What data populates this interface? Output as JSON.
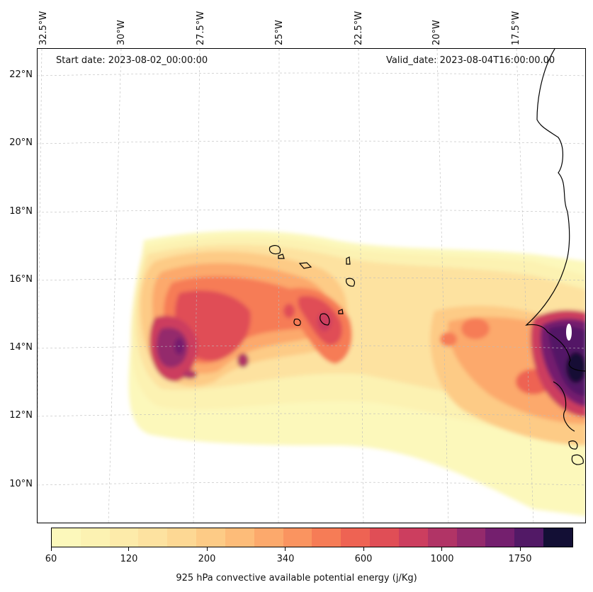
{
  "header": {
    "start_date": "Start date: 2023-08-02_00:00:00",
    "valid_date": "Valid_date: 2023-08-04T16:00:00.00"
  },
  "lon_labels": [
    "32.5°W",
    "30°W",
    "27.5°W",
    "25°W",
    "22.5°W",
    "20°W",
    "17.5°W"
  ],
  "lat_labels": [
    "22°N",
    "20°N",
    "18°N",
    "16°N",
    "14°N",
    "12°N",
    "10°N"
  ],
  "colorbar": {
    "title": "925 hPa convective available potential energy (j/Kg)",
    "tick_labels": [
      "60",
      "120",
      "200",
      "340",
      "600",
      "1000",
      "1750"
    ],
    "colors": [
      "#fcf8bb",
      "#fcf2b2",
      "#fdebaa",
      "#fde2a0",
      "#fdd894",
      "#fdcb86",
      "#fdbc79",
      "#fca96c",
      "#fa9460",
      "#f67c56",
      "#ee6353",
      "#e04e56",
      "#cc3e5f",
      "#b13466",
      "#942a6c",
      "#741f6e",
      "#521966",
      "#130f35"
    ]
  },
  "chart_data": {
    "type": "heatmap",
    "variable": "925 hPa convective available potential energy",
    "units": "j/Kg",
    "lon_ticks": [
      "32.5°W",
      "30°W",
      "27.5°W",
      "25°W",
      "22.5°W",
      "20°W",
      "17.5°W"
    ],
    "lat_ticks": [
      "22°N",
      "20°N",
      "18°N",
      "16°N",
      "14°N",
      "12°N",
      "10°N"
    ],
    "levels": [
      60,
      120,
      200,
      340,
      600,
      1000,
      1750
    ],
    "grid": true,
    "maxima": [
      {
        "location": "about 28.5°W 14°N",
        "value": ">1000"
      },
      {
        "location": "near West African coast 16.5°W 14°N",
        "value": ">1750"
      }
    ]
  }
}
